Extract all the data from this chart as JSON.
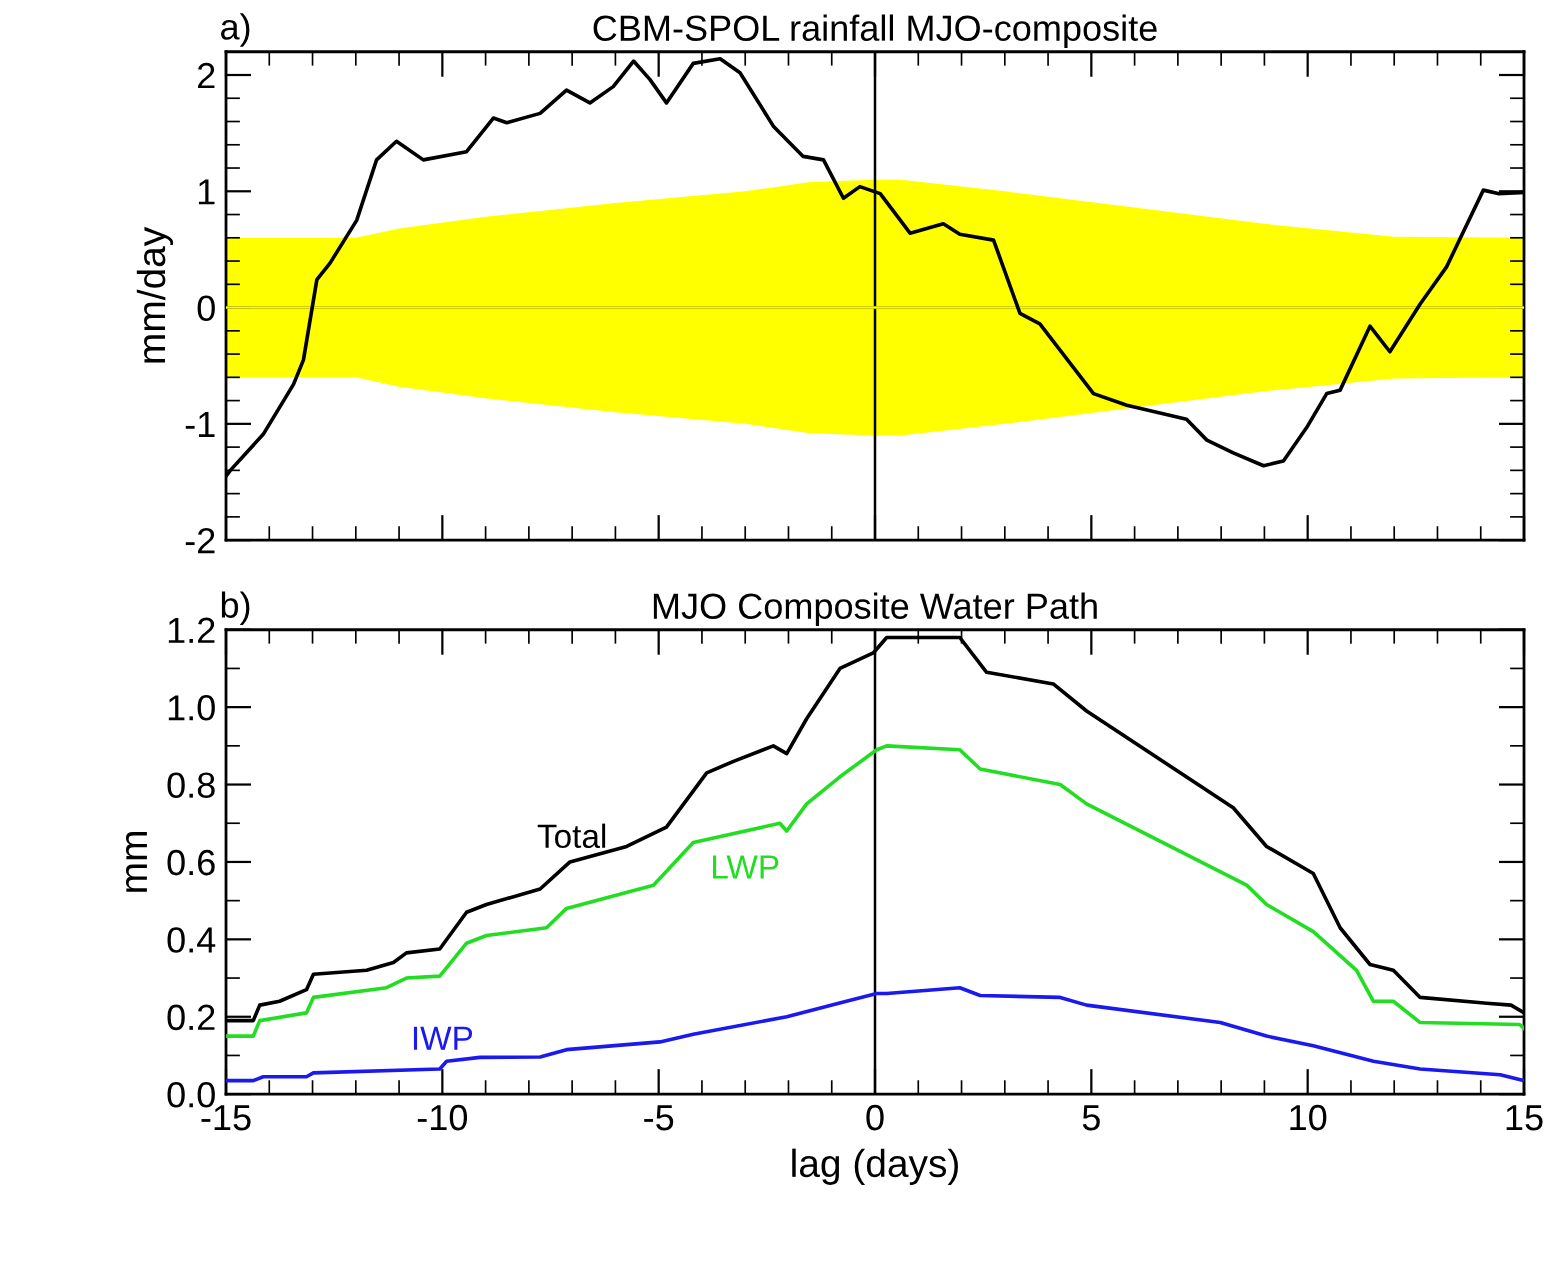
{
  "chart_data": [
    {
      "type": "line",
      "title": "CBM-SPOL rainfall MJO-composite",
      "ylabel": "mm/day",
      "annotations": [
        "a)"
      ],
      "xlim": [
        -15,
        15
      ],
      "xticks": [
        -15,
        -10,
        -5,
        0,
        5,
        10,
        15
      ],
      "ylim": [
        -2,
        2.2
      ],
      "yticks": [
        -2,
        -1,
        0,
        1,
        2
      ],
      "tick_labels": "y",
      "grid": false,
      "legend": false,
      "ref_lines": [
        {
          "axis": "y",
          "value": 0,
          "color": "#000000"
        },
        {
          "axis": "x",
          "value": 0,
          "color": "#000000"
        }
      ],
      "series": [
        {
          "type": "line",
          "color": "#ffff00",
          "x": [
            -15,
            -12,
            -11,
            -9,
            -6,
            -3,
            -1.5,
            0,
            0.6,
            3,
            6,
            9,
            12,
            15
          ],
          "values": [
            0,
            0,
            0,
            0,
            0,
            0,
            0,
            0,
            0,
            0,
            0,
            0,
            0,
            0
          ],
          "upper": [
            0.6,
            0.6,
            0.68,
            0.78,
            0.9,
            1.0,
            1.08,
            1.1,
            1.1,
            1.0,
            0.86,
            0.72,
            0.61,
            0.6
          ],
          "lower": [
            -0.6,
            -0.6,
            -0.68,
            -0.78,
            -0.9,
            -1.0,
            -1.08,
            -1.1,
            -1.1,
            -1.0,
            -0.86,
            -0.72,
            -0.61,
            -0.6
          ]
        },
        {
          "type": "line",
          "color": "#000000",
          "x": [
            -15,
            -14.9,
            -14.14,
            -13.44,
            -13.21,
            -12.9,
            -12.6,
            -11.98,
            -11.52,
            -11.06,
            -10.44,
            -9.44,
            -8.82,
            -8.51,
            -7.74,
            -7.13,
            -6.59,
            -6.05,
            -5.58,
            -5.2,
            -4.82,
            -4.2,
            -3.58,
            -3.12,
            -2.35,
            -1.66,
            -1.19,
            -0.73,
            -0.35,
            0.12,
            0.81,
            1.58,
            1.96,
            2.74,
            3.35,
            3.81,
            5.05,
            5.82,
            7.2,
            7.67,
            8.28,
            8.98,
            9.44,
            9.98,
            10.44,
            10.75,
            11.44,
            11.9,
            12.6,
            13.21,
            14.06,
            14.4,
            15
          ],
          "values": [
            -1.45,
            -1.4,
            -1.09,
            -0.66,
            -0.45,
            0.24,
            0.38,
            0.75,
            1.27,
            1.43,
            1.27,
            1.34,
            1.63,
            1.59,
            1.67,
            1.87,
            1.76,
            1.9,
            2.12,
            1.96,
            1.76,
            2.1,
            2.14,
            2.02,
            1.56,
            1.3,
            1.27,
            0.94,
            1.04,
            0.98,
            0.64,
            0.72,
            0.63,
            0.58,
            -0.05,
            -0.14,
            -0.74,
            -0.84,
            -0.96,
            -1.14,
            -1.25,
            -1.36,
            -1.32,
            -1.03,
            -0.74,
            -0.71,
            -0.16,
            -0.38,
            0.03,
            0.35,
            1.01,
            0.98,
            0.99
          ]
        }
      ]
    },
    {
      "type": "line",
      "title": "MJO Composite Water Path",
      "xlabel": "lag (days)",
      "ylabel": "mm",
      "annotations": [
        "b)"
      ],
      "xlim": [
        -15,
        15
      ],
      "xticks": [
        -15,
        -10,
        -5,
        0,
        5,
        10,
        15
      ],
      "ylim": [
        0,
        1.2
      ],
      "yticks": [
        {
          "value": 0,
          "label": "0.0"
        },
        0.2,
        0.4,
        0.6,
        0.8,
        {
          "value": 1,
          "label": "1.0"
        },
        1.2
      ],
      "grid": false,
      "legend": false,
      "ref_lines": [
        {
          "axis": "x",
          "value": 0,
          "color": "#000000"
        }
      ],
      "series": [
        {
          "name": "Total",
          "color": "#000000",
          "x": [
            -15,
            -14.37,
            -14.22,
            -13.76,
            -13.14,
            -12.98,
            -11.75,
            -11.13,
            -10.83,
            -10.06,
            -9.44,
            -8.98,
            -7.74,
            -7.05,
            -5.74,
            -4.82,
            -3.89,
            -3.27,
            -2.35,
            -2.04,
            -1.58,
            -0.81,
            -0.04,
            0.27,
            1.96,
            2.58,
            4.12,
            4.89,
            8.28,
            9.05,
            10.13,
            10.75,
            11.44,
            11.98,
            12.6,
            14.14,
            14.7,
            15
          ],
          "values": [
            0.19,
            0.19,
            0.23,
            0.24,
            0.27,
            0.31,
            0.32,
            0.34,
            0.365,
            0.375,
            0.47,
            0.49,
            0.53,
            0.6,
            0.64,
            0.69,
            0.83,
            0.86,
            0.9,
            0.88,
            0.97,
            1.1,
            1.14,
            1.18,
            1.18,
            1.09,
            1.06,
            0.99,
            0.74,
            0.64,
            0.57,
            0.43,
            0.335,
            0.32,
            0.25,
            0.235,
            0.23,
            0.21
          ]
        },
        {
          "name": "LWP",
          "color": "#22dd22",
          "x": [
            -15,
            -14.37,
            -14.22,
            -13.14,
            -12.98,
            -11.29,
            -10.83,
            -10.06,
            -9.44,
            -8.98,
            -7.59,
            -7.13,
            -5.12,
            -4.2,
            -2.2,
            -2.04,
            -1.58,
            -0.81,
            0.04,
            0.27,
            1.96,
            2.43,
            4.28,
            4.89,
            8.59,
            9.05,
            10.13,
            11.13,
            11.52,
            11.98,
            12.6,
            14.9,
            15
          ],
          "values": [
            0.15,
            0.15,
            0.19,
            0.21,
            0.25,
            0.275,
            0.3,
            0.305,
            0.39,
            0.41,
            0.43,
            0.48,
            0.54,
            0.65,
            0.7,
            0.68,
            0.75,
            0.82,
            0.89,
            0.9,
            0.89,
            0.84,
            0.8,
            0.75,
            0.54,
            0.49,
            0.42,
            0.32,
            0.24,
            0.24,
            0.185,
            0.18,
            0.17
          ]
        },
        {
          "name": "IWP",
          "color": "#1a1aee",
          "x": [
            -15,
            -14.37,
            -14.14,
            -13.14,
            -12.98,
            -10.06,
            -9.9,
            -9.13,
            -7.74,
            -7.13,
            -4.97,
            -4.2,
            -2.04,
            -0.66,
            0.04,
            0.27,
            1.96,
            2.43,
            4.28,
            4.89,
            7.98,
            9.05,
            10.13,
            11.52,
            12.6,
            14.45,
            15
          ],
          "values": [
            0.035,
            0.035,
            0.045,
            0.045,
            0.055,
            0.065,
            0.085,
            0.095,
            0.096,
            0.115,
            0.135,
            0.155,
            0.2,
            0.24,
            0.26,
            0.26,
            0.275,
            0.255,
            0.25,
            0.23,
            0.185,
            0.15,
            0.125,
            0.085,
            0.065,
            0.05,
            0.035
          ]
        }
      ]
    }
  ]
}
